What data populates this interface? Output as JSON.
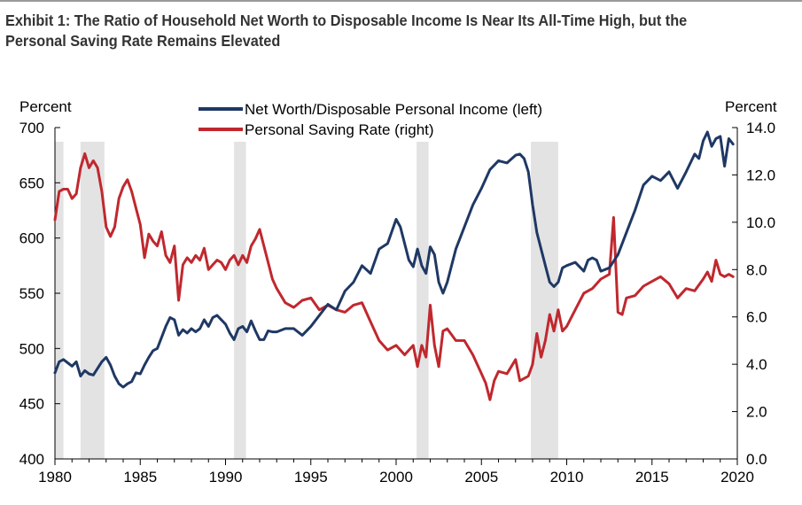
{
  "title": "Exhibit 1: The Ratio of Household Net Worth to Disposable Income Is Near Its All-Time High, but the Personal Saving Rate Remains Elevated",
  "chart_data": {
    "type": "line",
    "title": "Exhibit 1: The Ratio of Household Net Worth to Disposable Income Is Near Its All-Time High, but the Personal Saving Rate Remains Elevated",
    "left_axis": {
      "label": "Percent",
      "ylim": [
        400,
        700
      ],
      "ticks": [
        400,
        450,
        500,
        550,
        600,
        650,
        700
      ],
      "tick_labels": [
        "400",
        "450",
        "500",
        "550",
        "600",
        "650",
        "700"
      ]
    },
    "right_axis": {
      "label": "Percent",
      "ylim": [
        0,
        14
      ],
      "ticks": [
        0,
        2,
        4,
        6,
        8,
        10,
        12,
        14
      ],
      "tick_labels": [
        "0.0",
        "2.0",
        "4.0",
        "6.0",
        "8.0",
        "10.0",
        "12.0",
        "14.0"
      ]
    },
    "x_axis": {
      "xlim": [
        1980,
        2020
      ],
      "ticks": [
        1980,
        1985,
        1990,
        1995,
        2000,
        2005,
        2010,
        2015,
        2020
      ],
      "tick_labels": [
        "1980",
        "1985",
        "1990",
        "1995",
        "2000",
        "2005",
        "2010",
        "2015",
        "2020"
      ]
    },
    "recessions": [
      [
        1980.0,
        1980.5
      ],
      [
        1981.5,
        1982.9
      ],
      [
        1990.5,
        1991.2
      ],
      [
        2001.2,
        2001.9
      ],
      [
        2007.9,
        2009.5
      ]
    ],
    "legend_position": "top-center",
    "series": [
      {
        "name": "Net Worth/Disposable Personal Income (left)",
        "axis": "left",
        "color": "#1f3864",
        "x": [
          1980.0,
          1980.25,
          1980.5,
          1980.75,
          1981.0,
          1981.25,
          1981.5,
          1981.75,
          1982.0,
          1982.25,
          1982.5,
          1982.75,
          1983.0,
          1983.25,
          1983.5,
          1983.75,
          1984.0,
          1984.25,
          1984.5,
          1984.75,
          1985.0,
          1985.25,
          1985.5,
          1985.75,
          1986.0,
          1986.25,
          1986.5,
          1986.75,
          1987.0,
          1987.25,
          1987.5,
          1987.75,
          1988.0,
          1988.25,
          1988.5,
          1988.75,
          1989.0,
          1989.25,
          1989.5,
          1989.75,
          1990.0,
          1990.25,
          1990.5,
          1990.75,
          1991.0,
          1991.25,
          1991.5,
          1991.75,
          1992.0,
          1992.25,
          1992.5,
          1992.75,
          1993.0,
          1993.5,
          1994.0,
          1994.5,
          1995.0,
          1995.5,
          1996.0,
          1996.5,
          1997.0,
          1997.5,
          1998.0,
          1998.5,
          1999.0,
          1999.5,
          2000.0,
          2000.25,
          2000.5,
          2000.75,
          2001.0,
          2001.25,
          2001.5,
          2001.75,
          2002.0,
          2002.25,
          2002.5,
          2002.75,
          2003.0,
          2003.5,
          2004.0,
          2004.5,
          2005.0,
          2005.5,
          2006.0,
          2006.5,
          2007.0,
          2007.25,
          2007.5,
          2007.75,
          2008.0,
          2008.25,
          2008.5,
          2008.75,
          2009.0,
          2009.25,
          2009.5,
          2009.75,
          2010.0,
          2010.5,
          2011.0,
          2011.25,
          2011.5,
          2011.75,
          2012.0,
          2012.5,
          2013.0,
          2013.5,
          2014.0,
          2014.5,
          2015.0,
          2015.5,
          2016.0,
          2016.5,
          2017.0,
          2017.5,
          2017.75,
          2018.0,
          2018.25,
          2018.5,
          2018.75,
          2019.0,
          2019.25,
          2019.5,
          2019.75
        ],
        "values": [
          478,
          488,
          490,
          487,
          484,
          488,
          475,
          480,
          477,
          476,
          482,
          488,
          492,
          485,
          475,
          468,
          465,
          468,
          470,
          478,
          477,
          485,
          492,
          498,
          500,
          510,
          520,
          528,
          526,
          512,
          517,
          514,
          518,
          515,
          518,
          526,
          520,
          528,
          530,
          526,
          522,
          514,
          508,
          518,
          520,
          515,
          525,
          516,
          508,
          508,
          516,
          515,
          515,
          518,
          518,
          512,
          520,
          530,
          540,
          535,
          552,
          560,
          575,
          568,
          590,
          595,
          617,
          610,
          595,
          580,
          574,
          590,
          575,
          568,
          592,
          585,
          560,
          550,
          560,
          590,
          610,
          630,
          645,
          662,
          670,
          668,
          675,
          676,
          672,
          660,
          630,
          605,
          590,
          575,
          560,
          556,
          560,
          573,
          575,
          578,
          570,
          580,
          582,
          580,
          570,
          573,
          585,
          605,
          625,
          648,
          656,
          652,
          660,
          645,
          660,
          676,
          672,
          688,
          696,
          683,
          690,
          692,
          665,
          690,
          685
        ]
      },
      {
        "name": "Personal Saving Rate (right)",
        "axis": "right",
        "color": "#c0282e",
        "x": [
          1980.0,
          1980.25,
          1980.5,
          1980.75,
          1981.0,
          1981.25,
          1981.5,
          1981.75,
          1982.0,
          1982.25,
          1982.5,
          1982.75,
          1983.0,
          1983.25,
          1983.5,
          1983.75,
          1984.0,
          1984.25,
          1984.5,
          1984.75,
          1985.0,
          1985.25,
          1985.5,
          1985.75,
          1986.0,
          1986.25,
          1986.5,
          1986.75,
          1987.0,
          1987.25,
          1987.5,
          1987.75,
          1988.0,
          1988.25,
          1988.5,
          1988.75,
          1989.0,
          1989.25,
          1989.5,
          1989.75,
          1990.0,
          1990.25,
          1990.5,
          1990.75,
          1991.0,
          1991.25,
          1991.5,
          1991.75,
          1992.0,
          1992.25,
          1992.5,
          1992.75,
          1993.0,
          1993.5,
          1994.0,
          1994.5,
          1995.0,
          1995.5,
          1996.0,
          1996.5,
          1997.0,
          1997.5,
          1998.0,
          1998.5,
          1999.0,
          1999.5,
          2000.0,
          2000.5,
          2001.0,
          2001.25,
          2001.5,
          2001.75,
          2002.0,
          2002.25,
          2002.5,
          2002.75,
          2003.0,
          2003.5,
          2004.0,
          2004.5,
          2005.0,
          2005.25,
          2005.5,
          2005.75,
          2006.0,
          2006.5,
          2007.0,
          2007.25,
          2007.5,
          2007.75,
          2008.0,
          2008.25,
          2008.5,
          2008.75,
          2009.0,
          2009.25,
          2009.5,
          2009.75,
          2010.0,
          2010.5,
          2011.0,
          2011.5,
          2012.0,
          2012.5,
          2012.75,
          2013.0,
          2013.25,
          2013.5,
          2014.0,
          2014.5,
          2015.0,
          2015.5,
          2016.0,
          2016.5,
          2017.0,
          2017.5,
          2018.0,
          2018.25,
          2018.5,
          2018.75,
          2019.0,
          2019.25,
          2019.5,
          2019.75
        ],
        "values": [
          10.1,
          11.3,
          11.4,
          11.4,
          11.0,
          11.2,
          12.3,
          12.9,
          12.3,
          12.6,
          12.3,
          11.3,
          9.8,
          9.4,
          9.8,
          11.0,
          11.5,
          11.8,
          11.3,
          10.6,
          9.9,
          8.5,
          9.5,
          9.2,
          9.0,
          9.6,
          8.6,
          8.3,
          9.0,
          6.7,
          8.2,
          8.5,
          8.3,
          8.6,
          8.4,
          8.9,
          8.0,
          8.2,
          8.4,
          8.3,
          8.0,
          8.4,
          8.6,
          8.2,
          8.6,
          8.3,
          9.0,
          9.3,
          9.7,
          9.0,
          8.3,
          7.6,
          7.2,
          6.6,
          6.4,
          6.7,
          6.8,
          6.3,
          6.5,
          6.3,
          6.2,
          6.5,
          6.6,
          5.8,
          5.0,
          4.6,
          4.8,
          4.4,
          4.8,
          3.9,
          4.8,
          4.3,
          6.5,
          4.8,
          3.9,
          5.4,
          5.5,
          5.0,
          5.0,
          4.4,
          3.6,
          3.2,
          2.5,
          3.3,
          3.7,
          3.6,
          4.2,
          3.3,
          3.4,
          3.5,
          4.0,
          5.3,
          4.3,
          5.0,
          6.1,
          5.4,
          6.3,
          5.4,
          5.6,
          6.3,
          7.0,
          7.2,
          7.6,
          7.8,
          10.2,
          6.2,
          6.1,
          6.8,
          6.9,
          7.3,
          7.5,
          7.7,
          7.4,
          6.8,
          7.2,
          7.1,
          7.6,
          7.9,
          7.5,
          8.4,
          7.8,
          7.7,
          7.8,
          7.7
        ]
      }
    ]
  }
}
